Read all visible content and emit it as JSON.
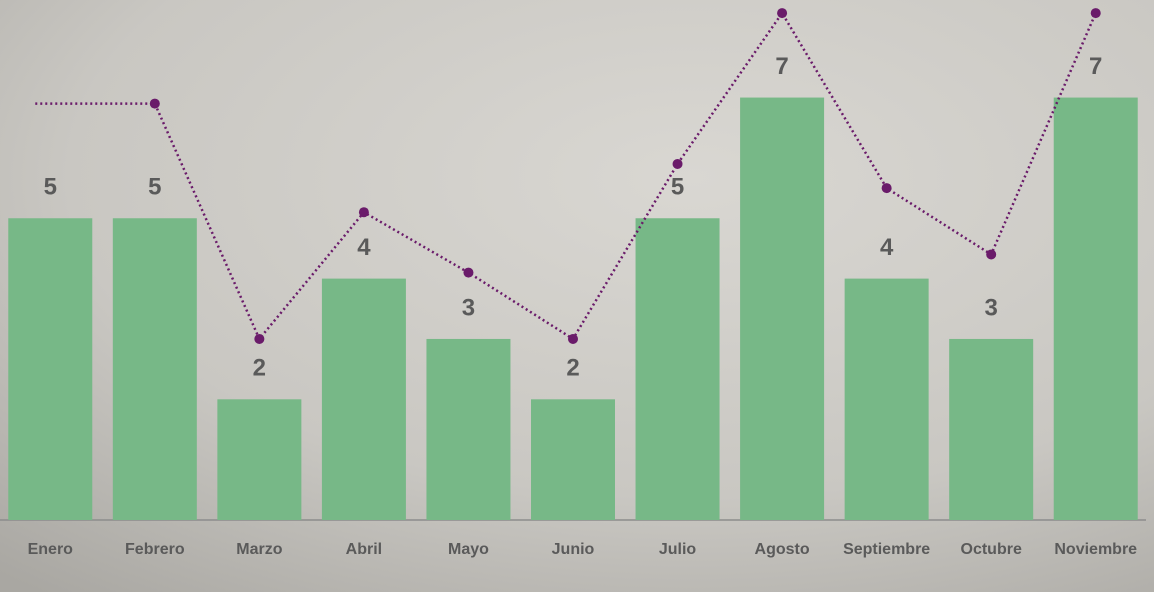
{
  "chart_data": {
    "type": "bar",
    "categories": [
      "Enero",
      "Febrero",
      "Marzo",
      "Abril",
      "Mayo",
      "Junio",
      "Julio",
      "Agosto",
      "Septiembre",
      "Octubre",
      "Noviembre"
    ],
    "series": [
      {
        "type": "bar",
        "color": "#77b887",
        "values": [
          5,
          5,
          2,
          4,
          3,
          2,
          5,
          7,
          4,
          3,
          7
        ]
      },
      {
        "type": "line",
        "color": "#6a1b6a",
        "values": [
          6.9,
          6.9,
          3,
          5.1,
          4.1,
          3,
          5.9,
          8.4,
          5.5,
          4.4,
          8.4
        ]
      }
    ],
    "ylim": [
      0,
      8.6
    ]
  }
}
